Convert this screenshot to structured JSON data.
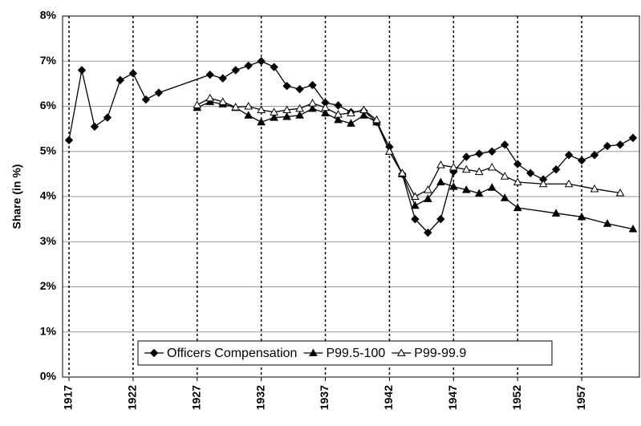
{
  "chart_data": {
    "type": "line",
    "y_label": "Share (in %)",
    "xlim": [
      1916.5,
      1961.5
    ],
    "xticks": [
      1917,
      1922,
      1927,
      1932,
      1937,
      1942,
      1947,
      1952,
      1957
    ],
    "ylim": [
      0,
      8
    ],
    "yticks": [
      {
        "value": 0,
        "label": "0%"
      },
      {
        "value": 1,
        "label": "1%"
      },
      {
        "value": 2,
        "label": "2%"
      },
      {
        "value": 3,
        "label": "3%"
      },
      {
        "value": 4,
        "label": "4%"
      },
      {
        "value": 5,
        "label": "5%"
      },
      {
        "value": 6,
        "label": "6%"
      },
      {
        "value": 7,
        "label": "7%"
      },
      {
        "value": 8,
        "label": "8%"
      }
    ],
    "grid": true,
    "legend": "bottom",
    "series": [
      {
        "name": "Officers Compensation",
        "color": "#000000",
        "marker": "diamond",
        "x": [
          1917,
          1918,
          1919,
          1920,
          1921,
          1922,
          1923,
          1924,
          1928,
          1929,
          1930,
          1931,
          1932,
          1933,
          1934,
          1935,
          1936,
          1937,
          1938,
          1939,
          1940,
          1941,
          1942,
          1943,
          1944,
          1945,
          1946,
          1947,
          1948,
          1949,
          1950,
          1951,
          1952,
          1953,
          1954,
          1955,
          1956,
          1957,
          1958,
          1959,
          1960,
          1961
        ],
        "values": [
          5.25,
          6.8,
          5.55,
          5.75,
          6.58,
          6.73,
          6.15,
          6.3,
          6.7,
          6.62,
          6.8,
          6.9,
          7.0,
          6.87,
          6.45,
          6.38,
          6.47,
          6.08,
          6.02,
          5.87,
          5.9,
          5.65,
          5.1,
          4.5,
          3.5,
          3.2,
          3.5,
          4.55,
          4.88,
          4.95,
          5.0,
          5.15,
          4.72,
          4.52,
          4.38,
          4.6,
          4.92,
          4.8,
          4.92,
          5.12,
          5.15,
          5.3
        ]
      },
      {
        "name": "P99.5-100",
        "color": "#000000",
        "marker": "triangle-filled",
        "x": [
          1927,
          1928,
          1929,
          1930,
          1931,
          1932,
          1933,
          1934,
          1935,
          1936,
          1937,
          1938,
          1939,
          1940,
          1941,
          1942,
          1943,
          1944,
          1945,
          1946,
          1947,
          1948,
          1949,
          1950,
          1951,
          1952,
          1955,
          1957,
          1959,
          1961
        ],
        "values": [
          5.97,
          6.1,
          6.05,
          5.97,
          5.8,
          5.65,
          5.75,
          5.77,
          5.8,
          5.95,
          5.85,
          5.7,
          5.62,
          5.8,
          5.65,
          5.0,
          4.5,
          3.8,
          3.95,
          4.32,
          4.22,
          4.15,
          4.07,
          4.2,
          3.97,
          3.75,
          3.63,
          3.55,
          3.4,
          3.28
        ]
      },
      {
        "name": "P99-99.9",
        "color": "#000000",
        "marker": "triangle-open",
        "x": [
          1927,
          1928,
          1929,
          1930,
          1931,
          1932,
          1933,
          1934,
          1935,
          1936,
          1937,
          1938,
          1939,
          1940,
          1941,
          1942,
          1943,
          1944,
          1945,
          1946,
          1947,
          1948,
          1949,
          1950,
          1951,
          1952,
          1954,
          1956,
          1958,
          1960
        ],
        "values": [
          6.03,
          6.18,
          6.1,
          5.98,
          6.0,
          5.92,
          5.87,
          5.92,
          5.95,
          6.07,
          5.97,
          5.82,
          5.85,
          5.92,
          5.7,
          5.0,
          4.52,
          4.0,
          4.15,
          4.7,
          4.65,
          4.6,
          4.55,
          4.65,
          4.45,
          4.32,
          4.28,
          4.28,
          4.17,
          4.08
        ]
      }
    ]
  }
}
